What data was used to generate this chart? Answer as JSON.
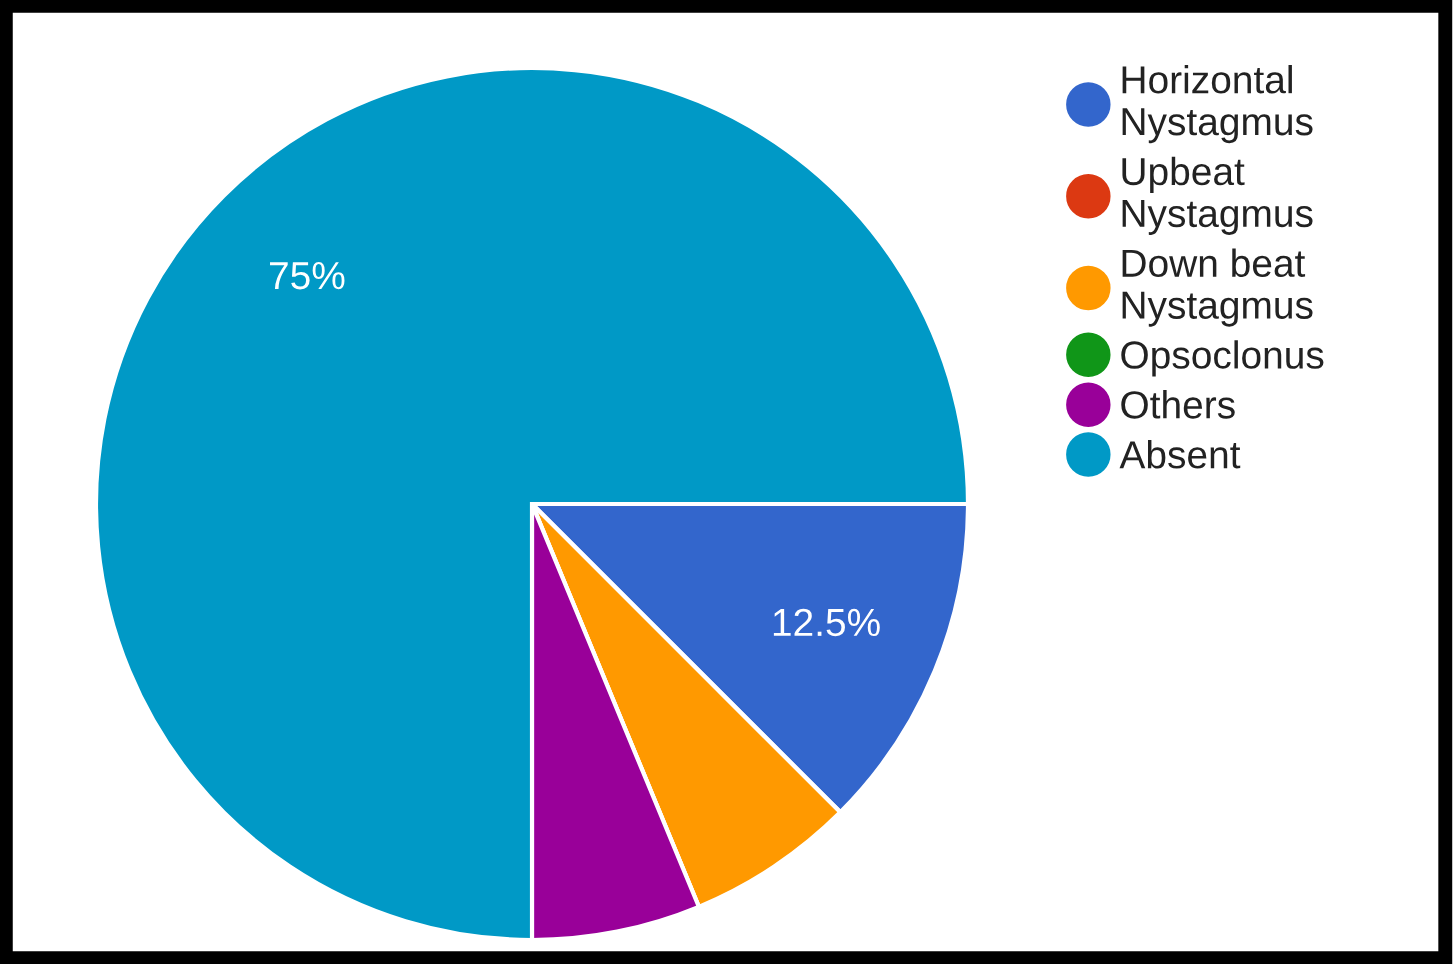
{
  "chart_data": {
    "type": "pie",
    "categories": [
      "Horizontal Nystagmus",
      "Upbeat Nystagmus",
      "Down beat Nystagmus",
      "Opsoclonus",
      "Others",
      "Absent"
    ],
    "values": [
      12.5,
      0,
      6.25,
      0,
      6.25,
      75
    ],
    "colors": [
      "#3366cc",
      "#dc3912",
      "#ff9900",
      "#109618",
      "#990099",
      "#0099c6"
    ],
    "value_labels": [
      "12.5%",
      null,
      null,
      null,
      null,
      "75%"
    ],
    "legend": "right"
  }
}
